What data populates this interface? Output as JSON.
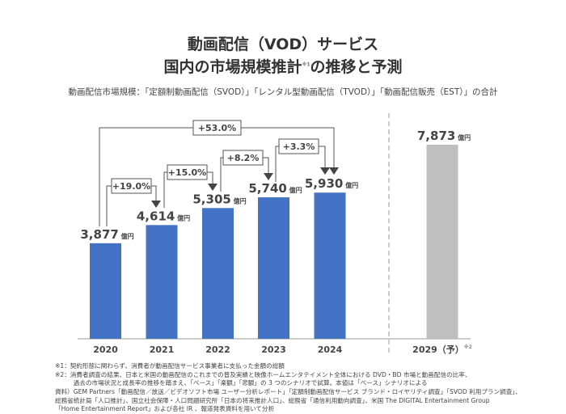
{
  "title_line1": "動画配信（VOD）サービス",
  "title_line2_main": "国内の市場規模推計",
  "title_line2_note": "※1",
  "title_line2_tail": "の推移と予測",
  "subtitle": "動画配信市場規模：「定額制動画配信（SVOD）」「レンタル型動画配信（TVOD）」「動画配信販売（EST）」の合計",
  "chart_data": {
    "type": "bar",
    "categories": [
      "2020",
      "2021",
      "2022",
      "2023",
      "2024",
      "2029（予）"
    ],
    "values": [
      3877,
      4614,
      5305,
      5740,
      5930,
      7873
    ],
    "value_labels": [
      "3,877",
      "4,614",
      "5,305",
      "5,740",
      "5,930",
      "7,873"
    ],
    "unit": "億円",
    "forecast_note": "※2",
    "colors": {
      "actual": "#4472c4",
      "forecast": "#bfbfbf"
    },
    "ylim": [
      0,
      7873
    ],
    "grid": false,
    "annotations": [
      {
        "from": "2020",
        "to": "2021",
        "label": "+19.0%"
      },
      {
        "from": "2021",
        "to": "2022",
        "label": "+15.0%"
      },
      {
        "from": "2022",
        "to": "2023",
        "label": "+8.2%"
      },
      {
        "from": "2023",
        "to": "2024",
        "label": "+3.3%"
      },
      {
        "from": "2020",
        "to": "2024",
        "label": "+53.0%"
      }
    ]
  },
  "notes": [
    "※1：契約形態に関わらず、消費者が動画配信サービス事業者に支払った金額の総額",
    "※2：消費者調査の結果、日本と米国の動画配信のこれまでの普及実績と映像ホームエンタテイメント全体における DVD・BD 市場と動画配信の比率、",
    "　　　過去の市場状況と成長率の推移を踏まえ、「ベース」「楽観」「悲観」の 3 つのシナリオで試算。本値は「ベース」シナリオによる"
  ],
  "sources": [
    "資料）GEM Partners「動画配信／放送／ビデオソフト市場 ユーザー分析レポート」「定額制動画配信サービス ブランド・ロイヤリティ調査」「SVOD 利用プラン調査」、",
    "総務省統計局「人口推計」、国立社会保障・人口問題研究所「日本の将来推計人口」、総務省「通信利用動向調査」、米国 The DIGITAL Entertainment Group",
    "「Home Entertainment Report」および各社 IR 、報道発表資料を用いて分析"
  ]
}
